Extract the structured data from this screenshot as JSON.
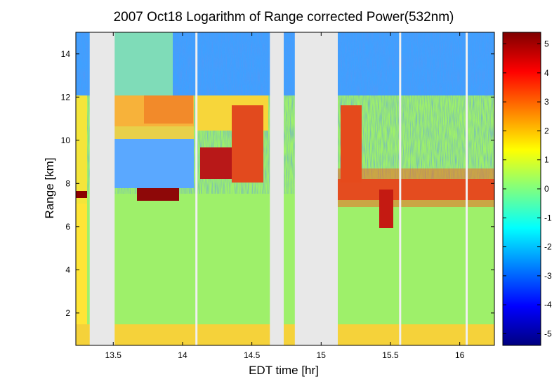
{
  "chart_data": {
    "type": "heatmap",
    "title": "2007 Oct18  Logarithm of Range corrected Power(532nm)",
    "xlabel": "EDT time [hr]",
    "ylabel": "Range [km]",
    "xlim": [
      13.23,
      16.25
    ],
    "ylim": [
      0.5,
      15
    ],
    "xticks": [
      13.5,
      14,
      14.5,
      15,
      15.5,
      16
    ],
    "yticks": [
      2,
      4,
      6,
      8,
      10,
      12,
      14
    ],
    "colorbar": {
      "colormap": "jet",
      "range": [
        -5.4,
        5.4
      ],
      "ticks": [
        5,
        4,
        3,
        2,
        1,
        0,
        -1,
        -2,
        -3,
        -4,
        -5
      ]
    },
    "data_gaps_hr": [
      [
        13.33,
        13.51
      ],
      [
        14.63,
        14.73
      ],
      [
        14.81,
        15.12
      ]
    ],
    "thin_gaps_hr": [
      14.1,
      15.57,
      16.05
    ],
    "features": {
      "boundary_layer_top_km": 1.4,
      "mid_cloud_base_km": 7.3,
      "upper_cloud_top_km": 12.0
    }
  }
}
